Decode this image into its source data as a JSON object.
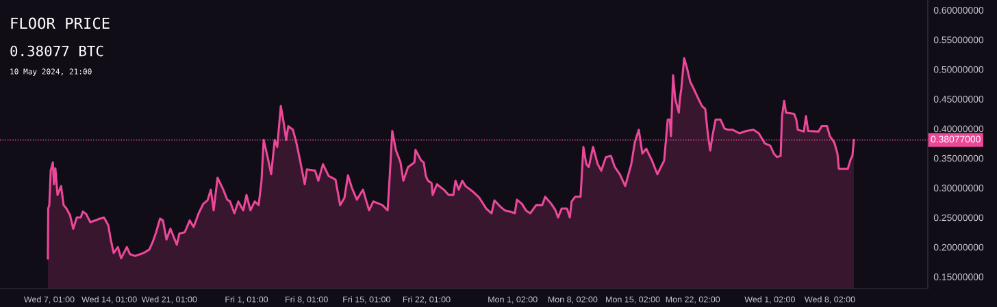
{
  "chart_data": {
    "type": "area",
    "title": "FLOOR PRICE",
    "subtitle": "0.38077 BTC",
    "annotations": [
      "10 May 2024, 21:00"
    ],
    "x": [
      "2024-02-06T21:00",
      "2024-02-06T22:00",
      "2024-02-07T01:00",
      "2024-02-07T05:00",
      "2024-02-07T11:00",
      "2024-02-07T14:00",
      "2024-02-07T18:00",
      "2024-02-08T00:00",
      "2024-02-08T10:00",
      "2024-02-08T17:00",
      "2024-02-09T01:00",
      "2024-02-09T11:00",
      "2024-02-09T20:00",
      "2024-02-10T06:00",
      "2024-02-10T17:00",
      "2024-02-10T23:00",
      "2024-02-11T08:00",
      "2024-02-11T20:00",
      "2024-02-12T23:00",
      "2024-02-13T10:00",
      "2024-02-13T22:00",
      "2024-02-14T05:00",
      "2024-02-14T13:00",
      "2024-02-15T01:00",
      "2024-02-15T10:00",
      "2024-02-16T02:00",
      "2024-02-16T11:00",
      "2024-02-17T01:00",
      "2024-02-18T01:00",
      "2024-02-18T17:00",
      "2024-02-19T02:00",
      "2024-02-19T12:00",
      "2024-02-19T23:00",
      "2024-02-20T07:00",
      "2024-02-20T17:00",
      "2024-02-21T04:00",
      "2024-02-21T22:00",
      "2024-02-22T05:00",
      "2024-02-22T20:00",
      "2024-02-23T10:00",
      "2024-02-23T21:00",
      "2024-02-24T11:00",
      "2024-02-25T00:00",
      "2024-02-25T12:00",
      "2024-02-25T21:00",
      "2024-02-26T05:00",
      "2024-02-26T16:00",
      "2024-02-27T08:00",
      "2024-02-27T19:00",
      "2024-02-28T03:00",
      "2024-02-28T15:00",
      "2024-02-29T02:00",
      "2024-02-29T16:00",
      "2024-03-01T01:00",
      "2024-03-01T12:00",
      "2024-03-02T00:00",
      "2024-03-02T11:00",
      "2024-03-02T19:00",
      "2024-03-03T01:00",
      "2024-03-03T12:00",
      "2024-03-03T22:00",
      "2024-03-04T08:00",
      "2024-03-04T15:00",
      "2024-03-05T01:00",
      "2024-03-05T09:00",
      "2024-03-05T16:00",
      "2024-03-05T22:00",
      "2024-03-06T11:00",
      "2024-03-06T21:00",
      "2024-03-07T07:00",
      "2024-03-07T20:00",
      "2024-03-08T02:00",
      "2024-03-09T01:00",
      "2024-03-09T10:00",
      "2024-03-09T23:00",
      "2024-03-10T15:00",
      "2024-03-11T10:00",
      "2024-03-11T23:00",
      "2024-03-12T11:00",
      "2024-03-12T21:00",
      "2024-03-13T08:00",
      "2024-03-13T22:00",
      "2024-03-14T15:00",
      "2024-03-15T08:00",
      "2024-03-15T20:00",
      "2024-03-16T21:00",
      "2024-03-17T12:00",
      "2024-03-17T18:00",
      "2024-03-18T01:00",
      "2024-03-18T11:00",
      "2024-03-19T00:00",
      "2024-03-19T08:00",
      "2024-03-19T21:00",
      "2024-03-20T15:00",
      "2024-03-20T18:00",
      "2024-03-21T10:00",
      "2024-03-21T17:00",
      "2024-03-21T23:00",
      "2024-03-22T05:00",
      "2024-03-22T15:00",
      "2024-03-22T18:00",
      "2024-03-23T06:00",
      "2024-03-24T01:00",
      "2024-03-24T15:00",
      "2024-03-25T04:00",
      "2024-03-25T10:00",
      "2024-03-25T19:00",
      "2024-03-26T05:00",
      "2024-03-26T14:00",
      "2024-03-27T10:00",
      "2024-03-28T05:00",
      "2024-03-29T00:00",
      "2024-03-29T15:00",
      "2024-03-29T23:00",
      "2024-03-30T14:00",
      "2024-03-31T04:00",
      "2024-03-31T19:00",
      "2024-04-01T08:00",
      "2024-04-01T14:00",
      "2024-04-02T04:00",
      "2024-04-02T15:00",
      "2024-04-03T03:00",
      "2024-04-03T20:00",
      "2024-04-04T13:00",
      "2024-04-04T21:00",
      "2024-04-05T14:00",
      "2024-04-06T02:00",
      "2024-04-06T09:00",
      "2024-04-06T19:00",
      "2024-04-07T10:00",
      "2024-04-07T18:00",
      "2024-04-07T23:00",
      "2024-04-08T09:00",
      "2024-04-09T00:00",
      "2024-04-09T08:00",
      "2024-04-09T16:00",
      "2024-04-09T23:00",
      "2024-04-10T11:00",
      "2024-04-11T00:00",
      "2024-04-11T10:00",
      "2024-04-11T23:00",
      "2024-04-12T13:00",
      "2024-04-13T00:00",
      "2024-04-13T14:00",
      "2024-04-14T05:00",
      "2024-04-14T22:00",
      "2024-04-15T08:00",
      "2024-04-15T19:00",
      "2024-04-16T05:00",
      "2024-04-16T16:00",
      "2024-04-17T08:00",
      "2024-04-17T23:00",
      "2024-04-18T18:00",
      "2024-04-19T04:00",
      "2024-04-19T10:00",
      "2024-04-19T13:00",
      "2024-04-19T19:00",
      "2024-04-20T01:00",
      "2024-04-20T11:00",
      "2024-04-20T14:00",
      "2024-04-20T18:00",
      "2024-04-21T02:00",
      "2024-04-21T10:00",
      "2024-04-21T19:00",
      "2024-04-22T05:00",
      "2024-04-22T18:00",
      "2024-04-23T04:00",
      "2024-04-23T13:00",
      "2024-04-23T21:00",
      "2024-04-24T03:00",
      "2024-04-24T09:00",
      "2024-04-24T18:00",
      "2024-04-25T08:00",
      "2024-04-25T19:00",
      "2024-04-26T05:00",
      "2024-04-26T18:00",
      "2024-04-27T13:00",
      "2024-04-28T08:00",
      "2024-04-29T04:00",
      "2024-04-29T19:00",
      "2024-04-30T12:00",
      "2024-05-01T03:00",
      "2024-05-01T13:00",
      "2024-05-01T22:00",
      "2024-05-02T08:00",
      "2024-05-02T12:00",
      "2024-05-02T18:00",
      "2024-05-02T23:00",
      "2024-05-03T22:00",
      "2024-05-04T04:00",
      "2024-05-04T08:00",
      "2024-05-05T01:00",
      "2024-05-05T07:00",
      "2024-05-05T13:00",
      "2024-05-06T18:00",
      "2024-05-07T03:00",
      "2024-05-07T18:00",
      "2024-05-08T02:00",
      "2024-05-08T14:00",
      "2024-05-08T23:00",
      "2024-05-09T03:00",
      "2024-05-10T04:00",
      "2024-05-10T12:00",
      "2024-05-10T17:00",
      "2024-05-10T21:00"
    ],
    "series": [
      {
        "color": "#ec4899",
        "values": [
          0.181,
          0.265,
          0.271,
          0.329,
          0.343,
          0.306,
          0.333,
          0.288,
          0.303,
          0.271,
          0.265,
          0.254,
          0.231,
          0.25,
          0.25,
          0.26,
          0.256,
          0.242,
          0.248,
          0.25,
          0.237,
          0.213,
          0.19,
          0.2,
          0.181,
          0.2,
          0.188,
          0.185,
          0.19,
          0.196,
          0.208,
          0.225,
          0.248,
          0.245,
          0.213,
          0.231,
          0.204,
          0.223,
          0.225,
          0.245,
          0.234,
          0.257,
          0.273,
          0.279,
          0.297,
          0.262,
          0.317,
          0.297,
          0.28,
          0.277,
          0.257,
          0.277,
          0.262,
          0.288,
          0.262,
          0.277,
          0.271,
          0.312,
          0.381,
          0.352,
          0.323,
          0.381,
          0.369,
          0.438,
          0.41,
          0.381,
          0.404,
          0.398,
          0.375,
          0.346,
          0.306,
          0.331,
          0.329,
          0.312,
          0.34,
          0.32,
          0.314,
          0.271,
          0.283,
          0.321,
          0.3,
          0.28,
          0.297,
          0.262,
          0.277,
          0.271,
          0.262,
          0.321,
          0.396,
          0.364,
          0.343,
          0.312,
          0.335,
          0.343,
          0.364,
          0.346,
          0.343,
          0.32,
          0.312,
          0.308,
          0.288,
          0.306,
          0.297,
          0.288,
          0.288,
          0.312,
          0.297,
          0.312,
          0.303,
          0.294,
          0.283,
          0.265,
          0.257,
          0.279,
          0.269,
          0.262,
          0.26,
          0.257,
          0.28,
          0.273,
          0.262,
          0.257,
          0.271,
          0.271,
          0.285,
          0.273,
          0.262,
          0.25,
          0.265,
          0.265,
          0.25,
          0.277,
          0.285,
          0.285,
          0.369,
          0.34,
          0.335,
          0.369,
          0.34,
          0.329,
          0.352,
          0.354,
          0.335,
          0.323,
          0.303,
          0.34,
          0.377,
          0.398,
          0.358,
          0.366,
          0.346,
          0.323,
          0.346,
          0.415,
          0.415,
          0.387,
          0.49,
          0.45,
          0.427,
          0.45,
          0.467,
          0.519,
          0.502,
          0.479,
          0.467,
          0.45,
          0.438,
          0.433,
          0.387,
          0.363,
          0.387,
          0.415,
          0.415,
          0.4,
          0.398,
          0.398,
          0.392,
          0.396,
          0.398,
          0.392,
          0.375,
          0.371,
          0.358,
          0.352,
          0.354,
          0.421,
          0.447,
          0.427,
          0.425,
          0.415,
          0.398,
          0.395,
          0.421,
          0.396,
          0.395,
          0.404,
          0.404,
          0.387,
          0.377,
          0.358,
          0.332,
          0.332,
          0.348,
          0.354,
          0.38077
        ]
      }
    ],
    "xlim": [
      "2024-02-01T07:00",
      "2024-05-19T12:00"
    ],
    "xticks": [
      {
        "value": "2024-02-07T01:00",
        "label": "Wed 7, 01:00"
      },
      {
        "value": "2024-02-14T01:00",
        "label": "Wed 14, 01:00"
      },
      {
        "value": "2024-02-21T01:00",
        "label": "Wed 21, 01:00"
      },
      {
        "value": "2024-03-01T01:00",
        "label": "Fri 1, 01:00"
      },
      {
        "value": "2024-03-08T01:00",
        "label": "Fri 8, 01:00"
      },
      {
        "value": "2024-03-15T01:00",
        "label": "Fri 15, 01:00"
      },
      {
        "value": "2024-03-22T01:00",
        "label": "Fri 22, 01:00"
      },
      {
        "value": "2024-04-01T02:00",
        "label": "Mon 1, 02:00"
      },
      {
        "value": "2024-04-08T02:00",
        "label": "Mon 8, 02:00"
      },
      {
        "value": "2024-04-15T02:00",
        "label": "Mon 15, 02:00"
      },
      {
        "value": "2024-04-22T02:00",
        "label": "Mon 22, 02:00"
      },
      {
        "value": "2024-05-01T02:00",
        "label": "Wed 1, 02:00"
      },
      {
        "value": "2024-05-08T02:00",
        "label": "Wed 8, 02:00"
      }
    ],
    "ylim": [
      0.13,
      0.617
    ],
    "yticks": [
      {
        "value": 0.15,
        "label": "0.15000000"
      },
      {
        "value": 0.2,
        "label": "0.20000000"
      },
      {
        "value": 0.25,
        "label": "0.25000000"
      },
      {
        "value": 0.3,
        "label": "0.30000000"
      },
      {
        "value": 0.35,
        "label": "0.35000000"
      },
      {
        "value": 0.4,
        "label": "0.40000000"
      },
      {
        "value": 0.45,
        "label": "0.45000000"
      },
      {
        "value": 0.5,
        "label": "0.50000000"
      },
      {
        "value": 0.55,
        "label": "0.55000000"
      },
      {
        "value": 0.6,
        "label": "0.60000000"
      }
    ],
    "ref_lines": [
      {
        "axis": "y",
        "value": 0.38077,
        "label": "0.38077000",
        "color": "#ec4899",
        "line_style": "dotted"
      }
    ],
    "grid": false,
    "legend": false
  }
}
